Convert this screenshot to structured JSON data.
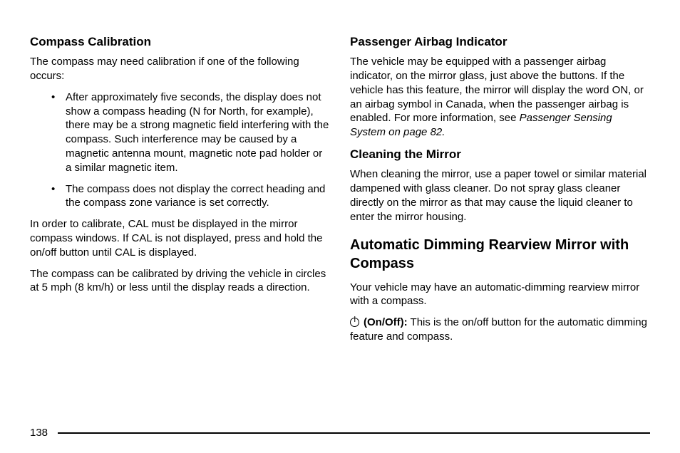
{
  "pageNumber": "138",
  "left": {
    "h_compass": "Compass Calibration",
    "p1": "The compass may need calibration if one of the following occurs:",
    "bullets": [
      "After approximately five seconds, the display does not show a compass heading (N for North, for example), there may be a strong magnetic field interfering with the compass. Such interference may be caused by a magnetic antenna mount, magnetic note pad holder or a similar magnetic item.",
      "The compass does not display the correct heading and the compass zone variance is set correctly."
    ],
    "p2": "In order to calibrate, CAL must be displayed in the mirror compass windows. If CAL is not displayed, press and hold the on/off button until CAL is displayed.",
    "p3": "The compass can be calibrated by driving the vehicle in circles at 5 mph (8 km/h) or less until the display reads a direction."
  },
  "right": {
    "h_airbag": "Passenger Airbag Indicator",
    "airbag_p_a": "The vehicle may be equipped with a passenger airbag indicator, on the mirror glass, just above the buttons. If the vehicle has this feature, the mirror will display the word ON, or an airbag symbol in Canada, when the passenger airbag is enabled. For more information, see ",
    "airbag_p_i": "Passenger Sensing System on page 82.",
    "h_clean": "Cleaning the Mirror",
    "clean_p": "When cleaning the mirror, use a paper towel or similar material dampened with glass cleaner. Do not spray glass cleaner directly on the mirror as that may cause the liquid cleaner to enter the mirror housing.",
    "h_auto": "Automatic Dimming Rearview Mirror with Compass",
    "auto_p1": "Your vehicle may have an automatic-dimming rearview mirror with a compass.",
    "onoff_label": "(On/Off):",
    "onoff_text": "  This is the on/off button for the automatic dimming feature and compass."
  }
}
